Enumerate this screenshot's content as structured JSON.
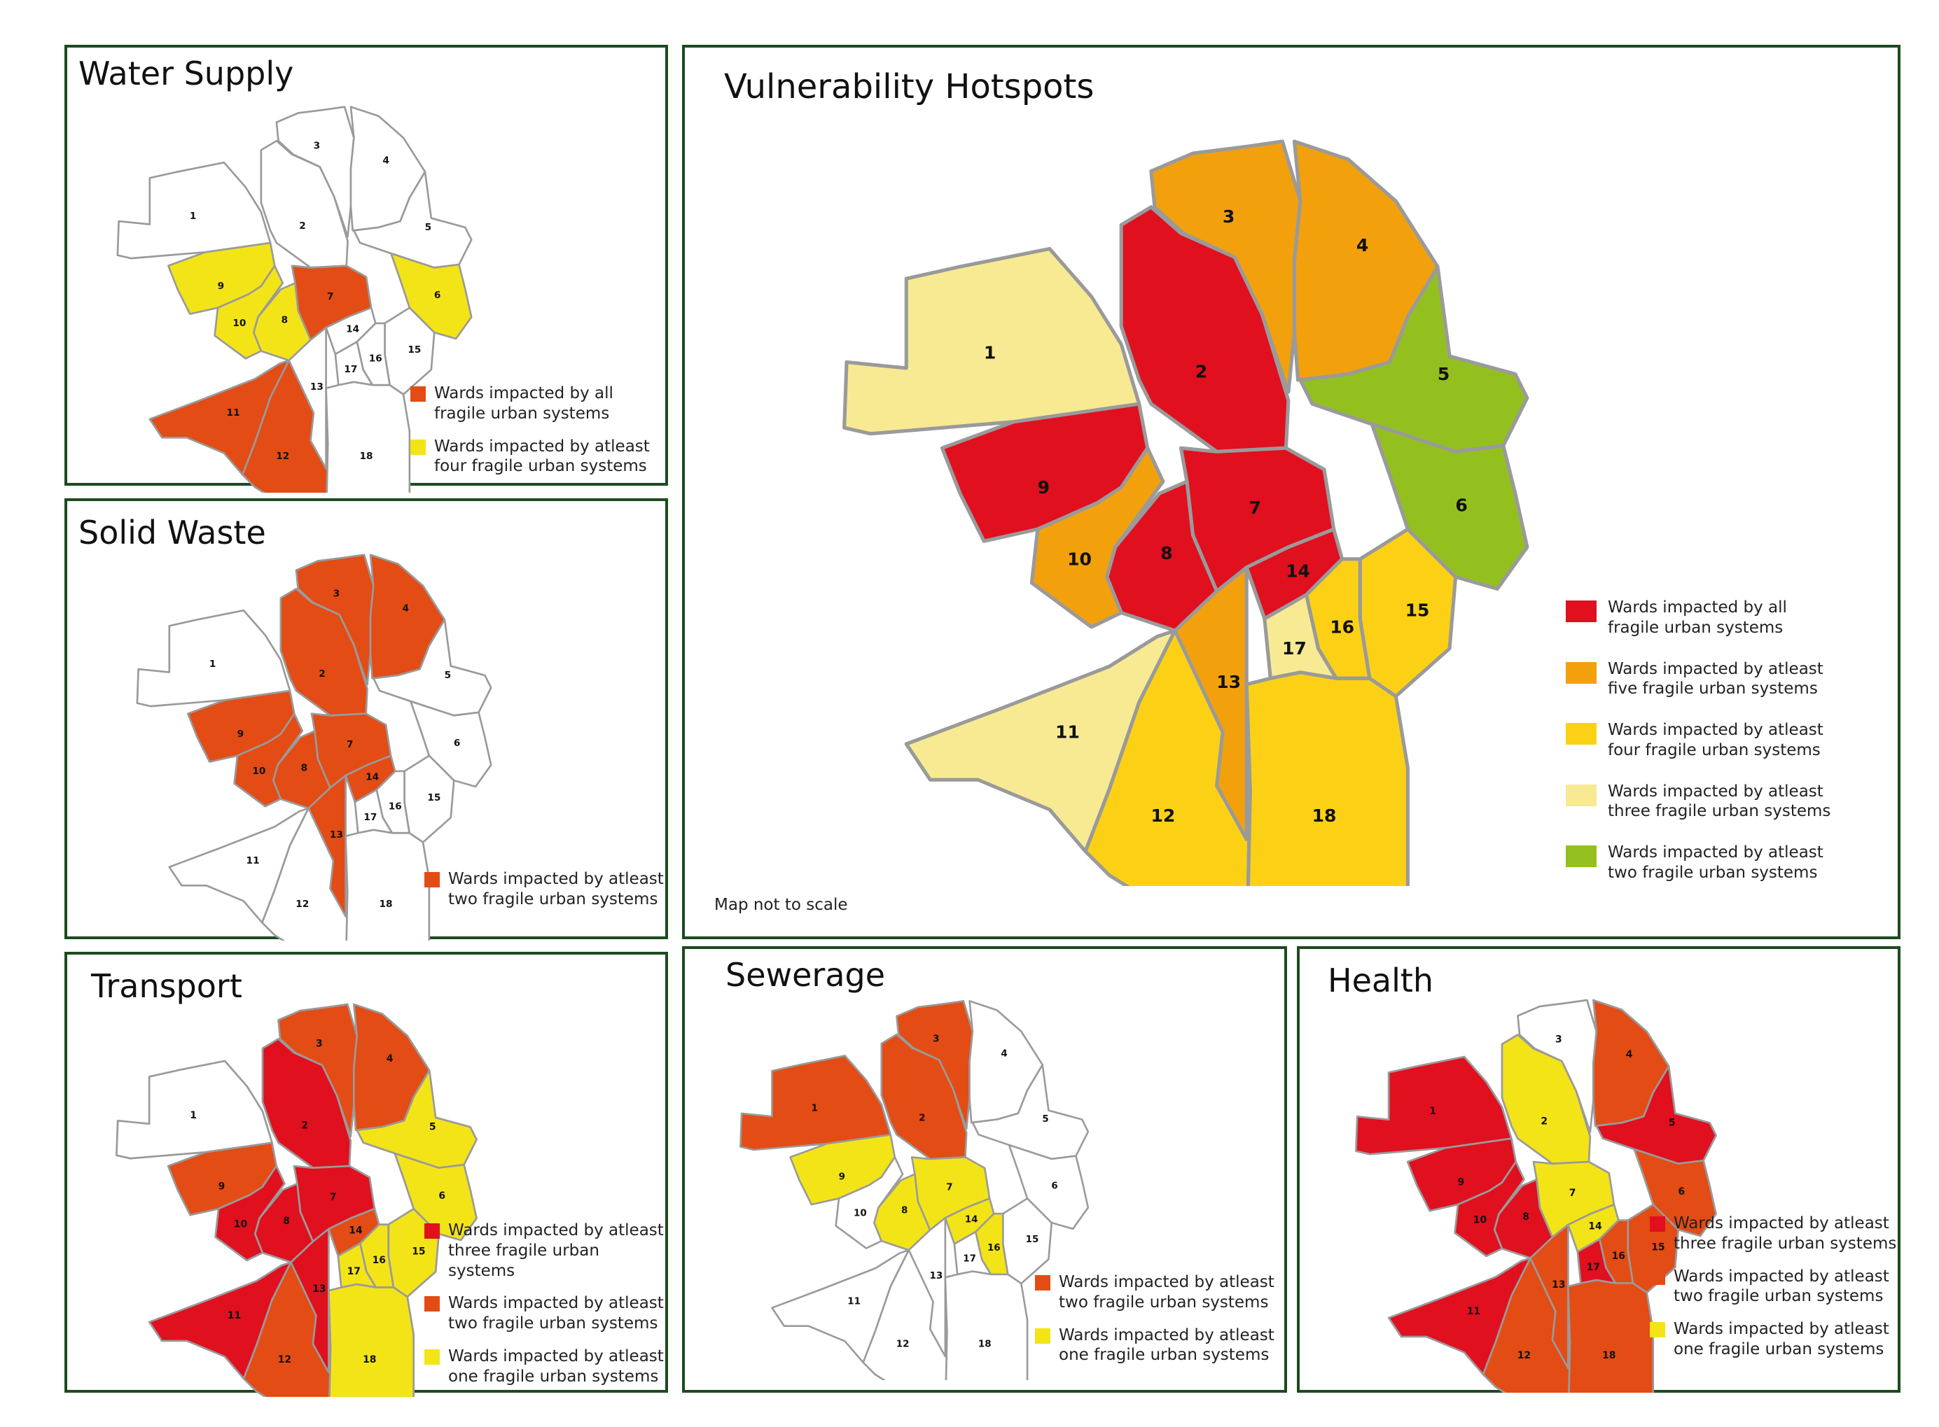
{
  "colors": {
    "all": "#e0101f",
    "five": "#f2a10d",
    "four": "#fcd115",
    "three": "#f7ea93",
    "two": "#93c01f",
    "small_red": "#e0101f",
    "small_orange": "#e34c15",
    "small_yellow": "#f3e417",
    "unaffected": "#ffffff",
    "border": "#1d4a21"
  },
  "ward_numbers": [
    "1",
    "2",
    "3",
    "4",
    "5",
    "6",
    "7",
    "8",
    "9",
    "10",
    "11",
    "12",
    "13",
    "14",
    "15",
    "16",
    "17",
    "18"
  ],
  "panels": {
    "water_supply": {
      "title": "Water Supply",
      "ward_colors": {
        "7": "small_orange",
        "11": "small_orange",
        "12": "small_orange",
        "6": "small_yellow",
        "8": "small_yellow",
        "9": "small_yellow",
        "10": "small_yellow"
      },
      "legend": [
        {
          "color": "small_orange",
          "text": "Wards impacted by all\nfragile urban systems"
        },
        {
          "color": "small_yellow",
          "text": "Wards impacted by atleast\nfour fragile urban systems"
        }
      ]
    },
    "solid_waste": {
      "title": "Solid Waste",
      "ward_colors": {
        "2": "small_orange",
        "3": "small_orange",
        "4": "small_orange",
        "7": "small_orange",
        "8": "small_orange",
        "9": "small_orange",
        "10": "small_orange",
        "13": "small_orange",
        "14": "small_orange"
      },
      "legend": [
        {
          "color": "small_orange",
          "text": "Wards impacted by atleast\ntwo fragile urban systems"
        }
      ]
    },
    "vulnerability": {
      "title": "Vulnerability Hotspots",
      "note": "Map not to scale",
      "ward_colors": {
        "1": "three",
        "2": "all",
        "3": "five",
        "4": "five",
        "5": "two",
        "6": "two",
        "7": "all",
        "8": "all",
        "9": "all",
        "10": "five",
        "11": "three",
        "12": "four",
        "13": "five",
        "14": "all",
        "15": "four",
        "16": "four",
        "17": "three",
        "18": "four"
      },
      "legend": [
        {
          "color": "all",
          "text": "Wards impacted by all\nfragile urban systems"
        },
        {
          "color": "five",
          "text": "Wards impacted by atleast\nfive fragile urban systems"
        },
        {
          "color": "four",
          "text": "Wards impacted by atleast\nfour fragile urban systems"
        },
        {
          "color": "three",
          "text": "Wards impacted by atleast\nthree fragile urban systems"
        },
        {
          "color": "two",
          "text": "Wards impacted by atleast\ntwo fragile urban systems"
        }
      ]
    },
    "transport": {
      "title": "Transport",
      "ward_colors": {
        "2": "small_red",
        "7": "small_red",
        "8": "small_red",
        "10": "small_red",
        "11": "small_red",
        "13": "small_red",
        "3": "small_orange",
        "4": "small_orange",
        "9": "small_orange",
        "12": "small_orange",
        "14": "small_orange",
        "5": "small_yellow",
        "6": "small_yellow",
        "15": "small_yellow",
        "16": "small_yellow",
        "17": "small_yellow",
        "18": "small_yellow"
      },
      "legend": [
        {
          "color": "small_red",
          "text": "Wards impacted by atleast\nthree fragile urban systems"
        },
        {
          "color": "small_orange",
          "text": "Wards impacted by atleast\ntwo fragile urban systems"
        },
        {
          "color": "small_yellow",
          "text": "Wards impacted by atleast\none fragile urban systems"
        }
      ]
    },
    "sewerage": {
      "title": "Sewerage",
      "ward_colors": {
        "1": "small_orange",
        "2": "small_orange",
        "3": "small_orange",
        "7": "small_yellow",
        "8": "small_yellow",
        "9": "small_yellow",
        "14": "small_yellow",
        "16": "small_yellow"
      },
      "legend": [
        {
          "color": "small_orange",
          "text": "Wards impacted by atleast\ntwo fragile urban systems"
        },
        {
          "color": "small_yellow",
          "text": "Wards impacted by atleast\none fragile urban systems"
        }
      ]
    },
    "health": {
      "title": "Health",
      "ward_colors": {
        "1": "small_red",
        "5": "small_red",
        "8": "small_red",
        "9": "small_red",
        "10": "small_red",
        "11": "small_red",
        "17": "small_red",
        "4": "small_orange",
        "6": "small_orange",
        "12": "small_orange",
        "13": "small_orange",
        "15": "small_orange",
        "16": "small_orange",
        "18": "small_orange",
        "2": "small_yellow",
        "7": "small_yellow",
        "14": "small_yellow"
      },
      "legend": [
        {
          "color": "small_red",
          "text": "Wards impacted by atleast\nthree fragile urban systems"
        },
        {
          "color": "small_orange",
          "text": "Wards impacted by atleast\ntwo fragile urban systems"
        },
        {
          "color": "small_yellow",
          "text": "Wards impacted by atleast\none fragile urban systems"
        }
      ]
    }
  }
}
